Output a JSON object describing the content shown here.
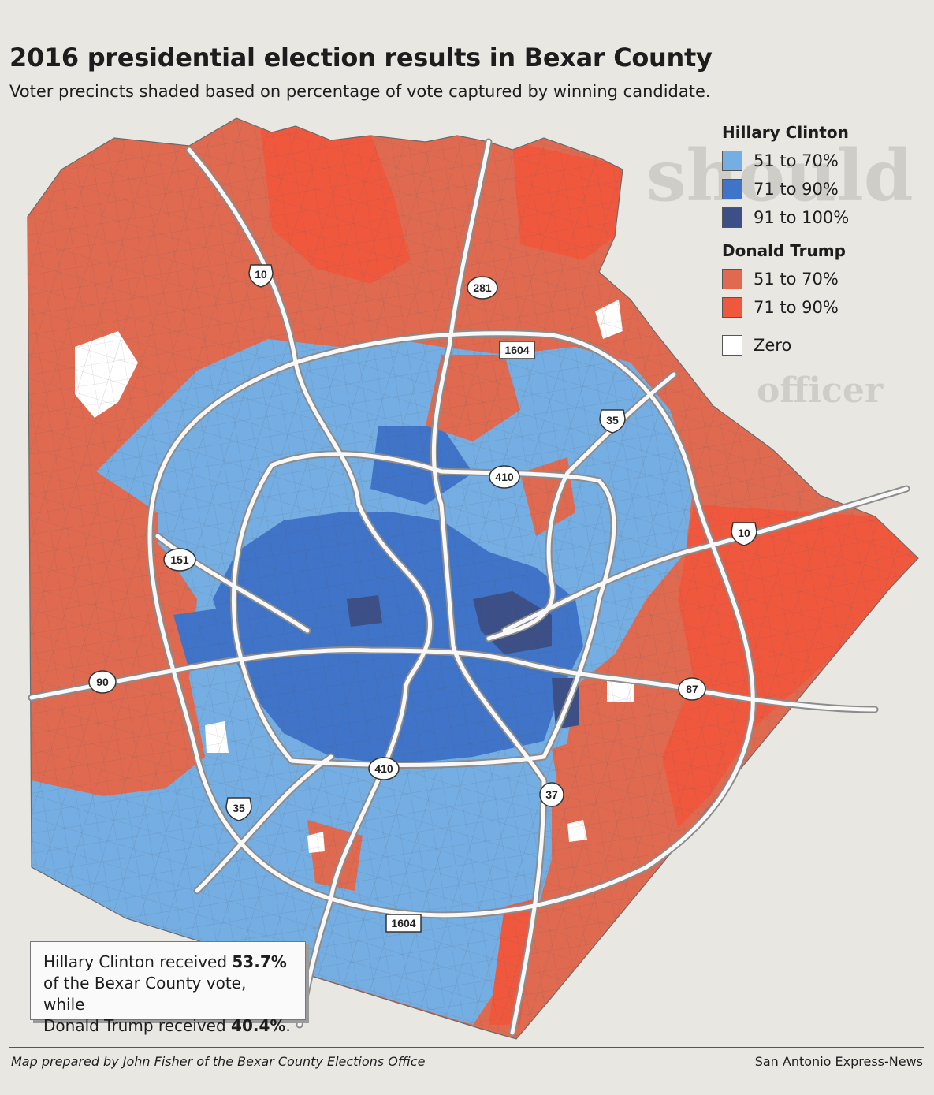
{
  "title": "2016 presidential election results in Bexar County",
  "subtitle": "Voter precincts shaded based on percentage of vote captured by winning candidate.",
  "legend": {
    "clinton_heading": "Hillary Clinton",
    "clinton_items": [
      {
        "label": "51 to 70%",
        "color": "#74aee2"
      },
      {
        "label": "71 to 90%",
        "color": "#3f74c8"
      },
      {
        "label": "91 to 100%",
        "color": "#3c4f86"
      }
    ],
    "trump_heading": "Donald Trump",
    "trump_items": [
      {
        "label": "51 to 70%",
        "color": "#e06a50"
      },
      {
        "label": "71 to 90%",
        "color": "#f0583e"
      }
    ],
    "zero_item": {
      "label": "Zero",
      "color": "#ffffff"
    }
  },
  "highway_labels": {
    "i10_north": "10",
    "us281": "281",
    "loop1604_north": "1604",
    "i35_northeast": "35",
    "loop410_north": "410",
    "i10_east": "10",
    "sh151": "151",
    "us90": "90",
    "us87": "87",
    "loop410_south": "410",
    "sh37": "37",
    "i35_southwest": "35",
    "loop1604_south": "1604"
  },
  "callout": {
    "line1_pre": "Hillary Clinton received ",
    "clinton_pct": "53.7%",
    "line2": "of the Bexar County vote, while",
    "line3_pre": "Donald Trump received ",
    "trump_pct": "40.4%",
    "line3_post": "."
  },
  "credit_left": "Map prepared by John Fisher of the Bexar County Elections Office",
  "credit_right": "San Antonio Express-News",
  "bleed_text": {
    "top": "should",
    "mid": "officer"
  }
}
